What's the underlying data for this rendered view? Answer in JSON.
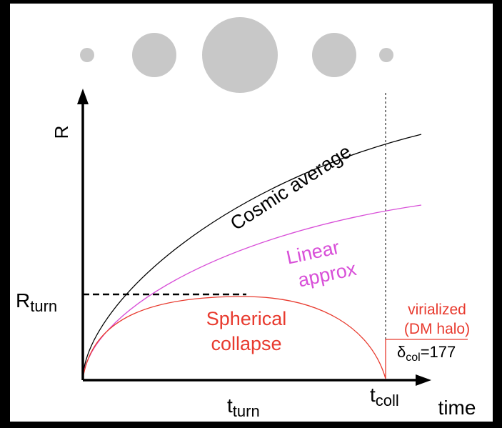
{
  "axes": {
    "y_label": "R",
    "x_label": "time"
  },
  "r_turn": {
    "main": "R",
    "sub": "turn"
  },
  "t_turn": {
    "main": "t",
    "sub": "turn"
  },
  "t_coll": {
    "main": "t",
    "sub": "coll"
  },
  "curves": {
    "cosmic": "Cosmic average",
    "linear": [
      "Linear",
      "approx"
    ],
    "spherical": [
      "Spherical",
      "collapse"
    ]
  },
  "virialized": [
    "virialized",
    "(DM halo)"
  ],
  "delta_col": {
    "main": "δ",
    "sub": "col",
    "rest": "=177"
  }
}
